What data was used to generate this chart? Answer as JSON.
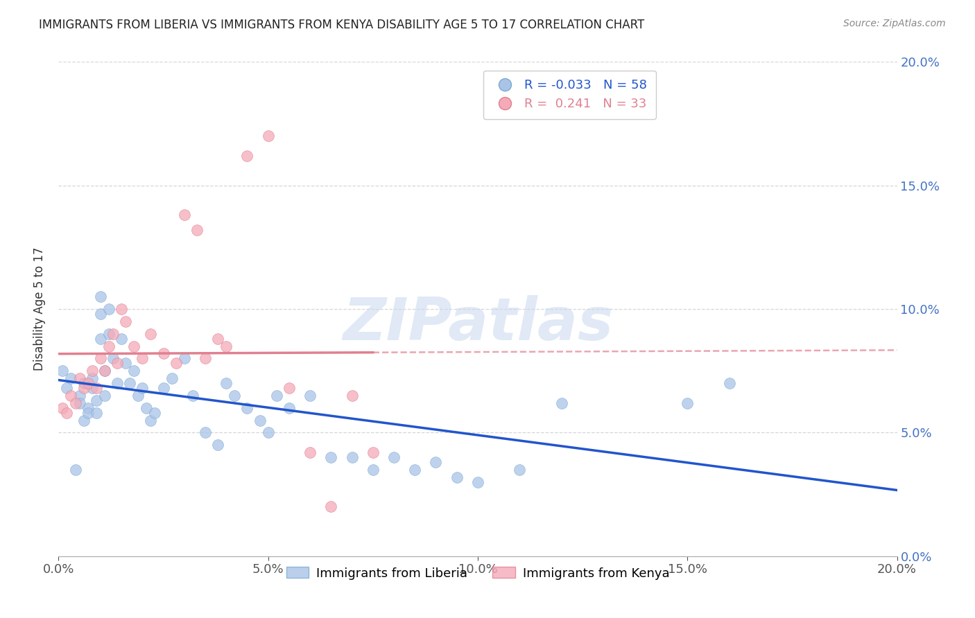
{
  "title": "IMMIGRANTS FROM LIBERIA VS IMMIGRANTS FROM KENYA DISABILITY AGE 5 TO 17 CORRELATION CHART",
  "source": "Source: ZipAtlas.com",
  "ylabel": "Disability Age 5 to 17",
  "xlim": [
    0,
    0.2
  ],
  "ylim": [
    0,
    0.2
  ],
  "liberia_color": "#aac4e8",
  "liberia_edge_color": "#7aaad0",
  "kenya_color": "#f4aab8",
  "kenya_edge_color": "#e08090",
  "liberia_line_color": "#2255cc",
  "kenya_line_color": "#e08090",
  "axis_color": "#4472c4",
  "grid_color": "#cccccc",
  "background_color": "#ffffff",
  "watermark": "ZIPatlas",
  "liberia_label": "Immigrants from Liberia",
  "kenya_label": "Immigrants from Kenya",
  "legend_R_liberia": "R = -0.033",
  "legend_N_liberia": "N = 58",
  "legend_R_kenya": "R =  0.241",
  "legend_N_kenya": "N = 33",
  "liberia_x": [
    0.001,
    0.002,
    0.003,
    0.004,
    0.005,
    0.005,
    0.006,
    0.006,
    0.007,
    0.007,
    0.008,
    0.008,
    0.009,
    0.009,
    0.01,
    0.01,
    0.01,
    0.011,
    0.011,
    0.012,
    0.012,
    0.013,
    0.014,
    0.015,
    0.016,
    0.017,
    0.018,
    0.019,
    0.02,
    0.021,
    0.022,
    0.023,
    0.025,
    0.027,
    0.03,
    0.032,
    0.035,
    0.038,
    0.04,
    0.042,
    0.045,
    0.048,
    0.05,
    0.052,
    0.055,
    0.06,
    0.065,
    0.07,
    0.075,
    0.08,
    0.085,
    0.09,
    0.095,
    0.1,
    0.11,
    0.12,
    0.15,
    0.16
  ],
  "liberia_y": [
    0.075,
    0.068,
    0.072,
    0.035,
    0.065,
    0.062,
    0.055,
    0.07,
    0.06,
    0.058,
    0.068,
    0.072,
    0.063,
    0.058,
    0.105,
    0.098,
    0.088,
    0.075,
    0.065,
    0.1,
    0.09,
    0.08,
    0.07,
    0.088,
    0.078,
    0.07,
    0.075,
    0.065,
    0.068,
    0.06,
    0.055,
    0.058,
    0.068,
    0.072,
    0.08,
    0.065,
    0.05,
    0.045,
    0.07,
    0.065,
    0.06,
    0.055,
    0.05,
    0.065,
    0.06,
    0.065,
    0.04,
    0.04,
    0.035,
    0.04,
    0.035,
    0.038,
    0.032,
    0.03,
    0.035,
    0.062,
    0.062,
    0.07
  ],
  "kenya_x": [
    0.001,
    0.002,
    0.003,
    0.004,
    0.005,
    0.006,
    0.007,
    0.008,
    0.009,
    0.01,
    0.011,
    0.012,
    0.013,
    0.014,
    0.015,
    0.016,
    0.018,
    0.02,
    0.022,
    0.025,
    0.028,
    0.03,
    0.033,
    0.035,
    0.038,
    0.04,
    0.045,
    0.05,
    0.055,
    0.06,
    0.065,
    0.07,
    0.075
  ],
  "kenya_y": [
    0.06,
    0.058,
    0.065,
    0.062,
    0.072,
    0.068,
    0.07,
    0.075,
    0.068,
    0.08,
    0.075,
    0.085,
    0.09,
    0.078,
    0.1,
    0.095,
    0.085,
    0.08,
    0.09,
    0.082,
    0.078,
    0.138,
    0.132,
    0.08,
    0.088,
    0.085,
    0.162,
    0.17,
    0.068,
    0.042,
    0.02,
    0.065,
    0.042
  ]
}
